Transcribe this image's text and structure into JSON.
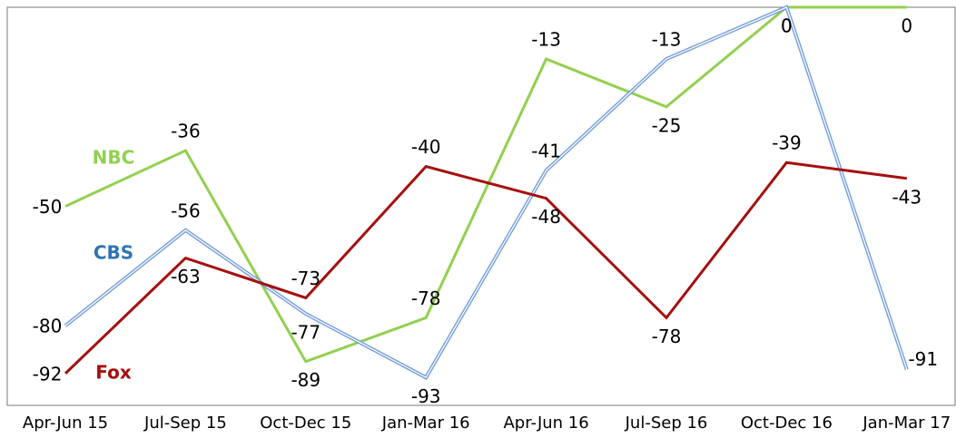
{
  "chart_data": {
    "type": "line",
    "categories": [
      "Apr-Jun 15",
      "Jul-Sep 15",
      "Oct-Dec 15",
      "Jan-Mar 16",
      "Apr-Jun 16",
      "Jul-Sep 16",
      "Oct-Dec 16",
      "Jan-Mar 17"
    ],
    "series": [
      {
        "name": "NBC",
        "color": "#92d050",
        "values": [
          -50,
          -36,
          -89,
          -78,
          -13,
          -25,
          0,
          0
        ]
      },
      {
        "name": "CBS",
        "color": "#6f9bd8",
        "values": [
          -80,
          -56,
          -77,
          -93,
          -41,
          -13,
          0,
          -91
        ]
      },
      {
        "name": "Fox",
        "color": "#a50f0f",
        "values": [
          -92,
          -63,
          -73,
          -40,
          -48,
          -78,
          -39,
          -43
        ]
      }
    ],
    "ylim": [
      -100,
      0
    ],
    "grid": false
  }
}
